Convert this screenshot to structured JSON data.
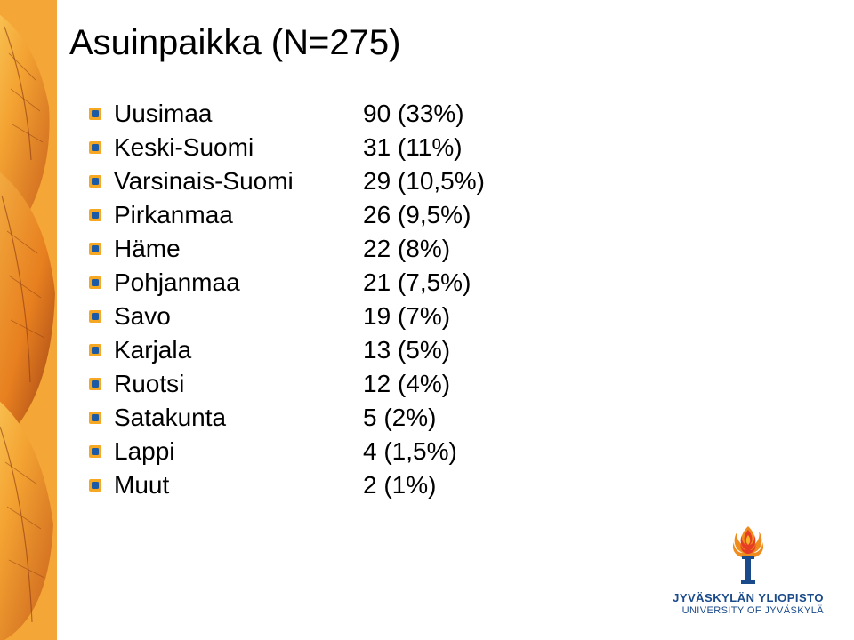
{
  "title": "Asuinpaikka (N=275)",
  "bullet_colors": {
    "outer": "#f7a823",
    "inner": "#1d5aa6"
  },
  "text_color": "#000000",
  "title_fontsize": 40,
  "row_fontsize": 28,
  "rows": [
    {
      "region": "Uusimaa",
      "value": "90 (33%)"
    },
    {
      "region": "Keski-Suomi",
      "value": "31 (11%)"
    },
    {
      "region": "Varsinais-Suomi",
      "value": "29 (10,5%)"
    },
    {
      "region": "Pirkanmaa",
      "value": "26 (9,5%)"
    },
    {
      "region": "Häme",
      "value": "22 (8%)"
    },
    {
      "region": "Pohjanmaa",
      "value": "21 (7,5%)"
    },
    {
      "region": "Savo",
      "value": "19 (7%)"
    },
    {
      "region": "Karjala",
      "value": "13 (5%)"
    },
    {
      "region": "Ruotsi",
      "value": "12 (4%)"
    },
    {
      "region": "Satakunta",
      "value": "5 (2%)"
    },
    {
      "region": "Lappi",
      "value": "4 (1,5%)"
    },
    {
      "region": "Muut",
      "value": "2 (1%)"
    }
  ],
  "left_stripe": {
    "colors": [
      "#f9c13b",
      "#f4a332",
      "#e77f1f",
      "#c9601c",
      "#a54a1a",
      "#f2b84a"
    ],
    "leaf_veins": "#8a3b12"
  },
  "logo": {
    "line1": "JYVÄSKYLÄN YLIOPISTO",
    "line2": "UNIVERSITY OF JYVÄSKYLÄ",
    "flame_colors": [
      "#e53e25",
      "#f08c1e",
      "#f6b42a"
    ],
    "torch_color": "#1a4a8a",
    "text_color": "#1a4a8a"
  }
}
